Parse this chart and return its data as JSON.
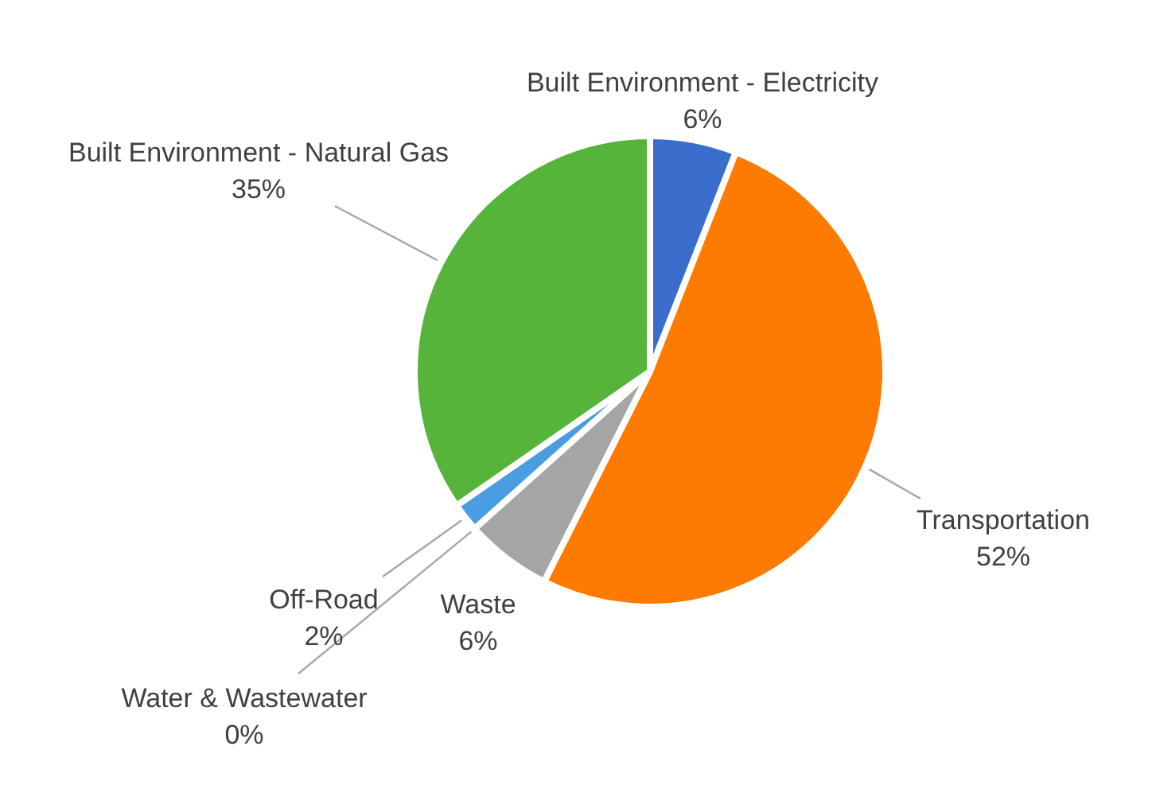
{
  "chart_data": {
    "type": "pie",
    "categories": [
      "Built Environment - Electricity",
      "Transportation",
      "Waste",
      "Water & Wastewater",
      "Off-Road",
      "Built Environment - Natural Gas"
    ],
    "values": [
      6,
      52,
      6,
      0,
      2,
      35
    ],
    "colors": [
      "#3b6dcc",
      "#fe7a00",
      "#a5a5a5",
      "#ffc000",
      "#4a9de0",
      "#57b43b"
    ],
    "value_labels": [
      "6%",
      "52%",
      "6%",
      "0%",
      "2%",
      "35%"
    ]
  }
}
